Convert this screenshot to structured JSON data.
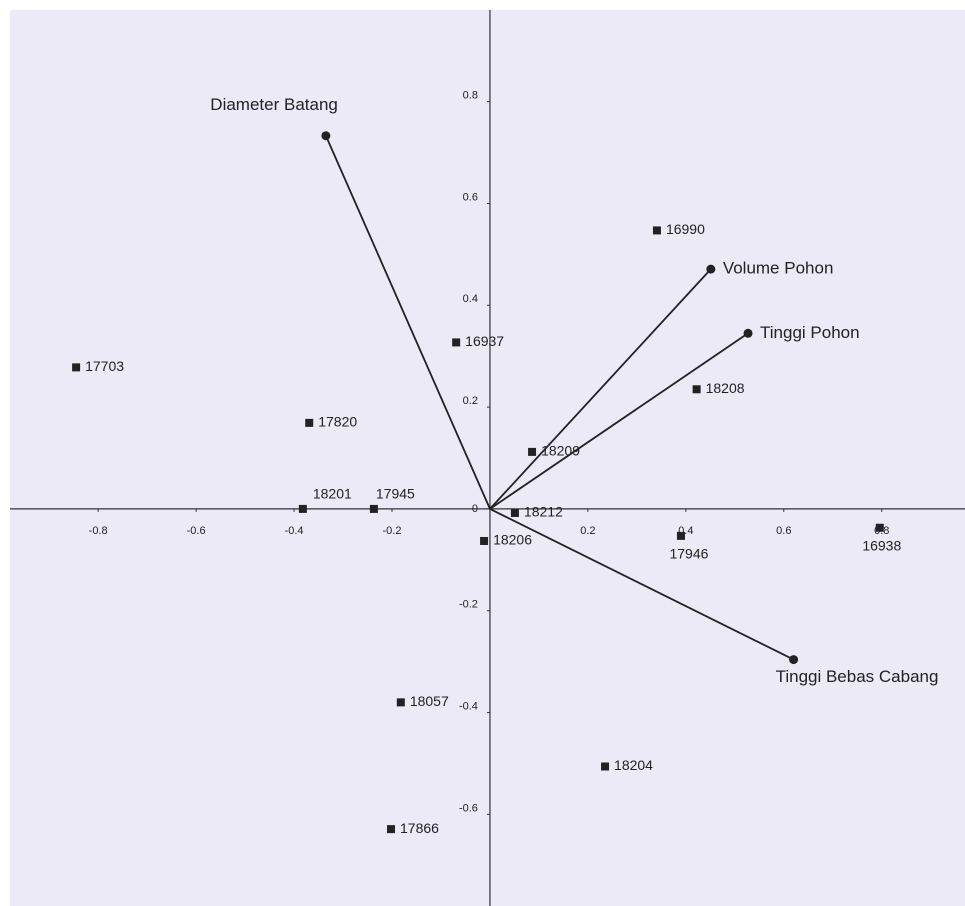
{
  "chart_data": {
    "type": "biplot",
    "xlim": [
      -0.98,
      0.97
    ],
    "ylim": [
      -0.78,
      0.98
    ],
    "xticks": [
      -0.8,
      -0.6,
      -0.4,
      -0.2,
      0.2,
      0.4,
      0.6,
      0.8
    ],
    "yticks": [
      0.8,
      0.6,
      0.4,
      0.2,
      0,
      -0.2,
      -0.4,
      -0.6
    ],
    "color": "#222222",
    "points": {
      "labels": [
        "17703",
        "17820",
        "18201",
        "17945",
        "16937",
        "16990",
        "18208",
        "18209",
        "18212",
        "18206",
        "17946",
        "16938",
        "18057",
        "18204",
        "17866"
      ],
      "x": [
        -0.845,
        -0.369,
        -0.382,
        -0.237,
        -0.069,
        0.341,
        0.422,
        0.086,
        0.051,
        -0.012,
        0.39,
        0.796,
        -0.182,
        0.235,
        -0.202
      ],
      "y": [
        0.278,
        0.169,
        0.0,
        0.0,
        0.327,
        0.547,
        0.235,
        0.112,
        -0.008,
        -0.063,
        -0.053,
        -0.037,
        -0.38,
        -0.506,
        -0.629
      ]
    },
    "vectors": {
      "labels": [
        "Diameter Batang",
        "Volume Pohon",
        "Tinggi Pohon",
        "Tinggi Bebas Cabang"
      ],
      "x": [
        -0.335,
        0.451,
        0.527,
        0.62
      ],
      "y": [
        0.733,
        0.471,
        0.345,
        -0.296
      ]
    }
  }
}
